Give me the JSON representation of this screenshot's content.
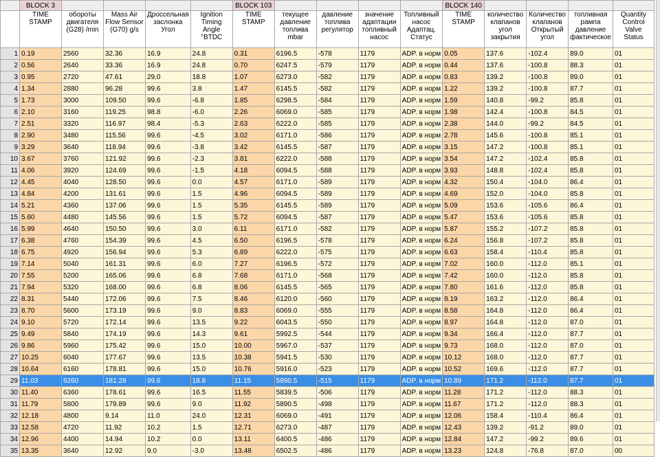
{
  "blocks": [
    {
      "label": "BLOCK 3",
      "after": 1,
      "span": 1
    },
    {
      "label": "BLOCK 103",
      "after": 5,
      "span": 1
    },
    {
      "label": "BLOCK 140",
      "after": 4,
      "span": 1
    }
  ],
  "columns": [
    {
      "label": "TIME STAMP",
      "ts": true
    },
    {
      "label": "обороты двигателя (G28) /min"
    },
    {
      "label": "Mass Air Flow Sensor (G70) g/s"
    },
    {
      "label": "Дроссельная заслонка Угол"
    },
    {
      "label": "Ignition Timing Angle °BTDC"
    },
    {
      "label": "TIME STAMP",
      "ts": true
    },
    {
      "label": "текущее давление топлива mbar"
    },
    {
      "label": "давление топлива регулятор"
    },
    {
      "label": "значение адаптации топливный насос"
    },
    {
      "label": "Топливный насос Адаптац. Статус"
    },
    {
      "label": "TIME STAMP",
      "ts": true
    },
    {
      "label": "количество клапанов угол закрытия"
    },
    {
      "label": "Количество клапанов Открытый угол"
    },
    {
      "label": "топливная рампа давление фактическое"
    },
    {
      "label": "Quantity Control Valve Status"
    }
  ],
  "selected_row": 29,
  "rows": [
    [
      "0.19",
      "2560",
      "32.36",
      "16.9",
      "24.8",
      "0.31",
      "6196.5",
      "-578",
      "1179",
      "ADP. в норм",
      "0.05",
      "137.6",
      "-102.4",
      "89.0",
      "01"
    ],
    [
      "0.56",
      "2640",
      "33.36",
      "16.9",
      "24.8",
      "0.70",
      "6247.5",
      "-579",
      "1179",
      "ADP. в норм",
      "0.44",
      "137.6",
      "-100.8",
      "88.3",
      "01"
    ],
    [
      "0.95",
      "2720",
      "47.61",
      "29.0",
      "18.8",
      "1.07",
      "6273.0",
      "-582",
      "1179",
      "ADP. в норм",
      "0.83",
      "139.2",
      "-100.8",
      "89.0",
      "01"
    ],
    [
      "1.34",
      "2880",
      "96.28",
      "99.6",
      "3.8",
      "1.47",
      "6145.5",
      "-582",
      "1179",
      "ADP. в норм",
      "1.22",
      "139.2",
      "-100.8",
      "87.7",
      "01"
    ],
    [
      "1.73",
      "3000",
      "109.50",
      "99.6",
      "-6.8",
      "1.85",
      "6298.5",
      "-584",
      "1179",
      "ADP. в норм",
      "1.59",
      "140.8",
      "-99.2",
      "85.8",
      "01"
    ],
    [
      "2.10",
      "3160",
      "119.25",
      "98.8",
      "-6.0",
      "2.26",
      "6069.0",
      "-585",
      "1179",
      "ADP. в норм",
      "1.98",
      "142.4",
      "-100.8",
      "84.5",
      "01"
    ],
    [
      "2.51",
      "3320",
      "116.97",
      "98.4",
      "-5.3",
      "2.63",
      "6222.0",
      "-585",
      "1179",
      "ADP. в норм",
      "2.38",
      "144.0",
      "-99.2",
      "84.5",
      "01"
    ],
    [
      "2.90",
      "3480",
      "115.56",
      "99.6",
      "-4.5",
      "3.02",
      "6171.0",
      "-586",
      "1179",
      "ADP. в норм",
      "2.78",
      "145.6",
      "-100.8",
      "85.1",
      "01"
    ],
    [
      "3.29",
      "3640",
      "118.94",
      "99.6",
      "-3.8",
      "3.42",
      "6145.5",
      "-587",
      "1179",
      "ADP. в норм",
      "3.15",
      "147.2",
      "-100.8",
      "85.1",
      "01"
    ],
    [
      "3.67",
      "3760",
      "121.92",
      "99.6",
      "-2.3",
      "3.81",
      "6222.0",
      "-588",
      "1179",
      "ADP. в норм",
      "3.54",
      "147.2",
      "-102.4",
      "85.8",
      "01"
    ],
    [
      "4.06",
      "3920",
      "124.69",
      "99.6",
      "-1.5",
      "4.18",
      "6094.5",
      "-588",
      "1179",
      "ADP. в норм",
      "3.93",
      "148.8",
      "-102.4",
      "85.8",
      "01"
    ],
    [
      "4.45",
      "4040",
      "128.50",
      "99.6",
      "0.0",
      "4.57",
      "6171.0",
      "-589",
      "1179",
      "ADP. в норм",
      "4.32",
      "150.4",
      "-104.0",
      "86.4",
      "01"
    ],
    [
      "4.84",
      "4200",
      "131.61",
      "99.6",
      "1.5",
      "4.96",
      "6094.5",
      "-589",
      "1179",
      "ADP. в норм",
      "4.69",
      "152.0",
      "-104.0",
      "85.8",
      "01"
    ],
    [
      "5.21",
      "4360",
      "137.06",
      "99.6",
      "1.5",
      "5.35",
      "6145.5",
      "-589",
      "1179",
      "ADP. в норм",
      "5.09",
      "153.6",
      "-105.6",
      "86.4",
      "01"
    ],
    [
      "5.60",
      "4480",
      "145.56",
      "99.6",
      "1.5",
      "5.72",
      "6094.5",
      "-587",
      "1179",
      "ADP. в норм",
      "5.47",
      "153.6",
      "-105.6",
      "85.8",
      "01"
    ],
    [
      "5.99",
      "4640",
      "150.50",
      "99.6",
      "3.0",
      "6.11",
      "6171.0",
      "-582",
      "1179",
      "ADP. в норм",
      "5.87",
      "155.2",
      "-107.2",
      "85.8",
      "01"
    ],
    [
      "6.38",
      "4760",
      "154.39",
      "99.6",
      "4.5",
      "6.50",
      "6196.5",
      "-578",
      "1179",
      "ADP. в норм",
      "6.24",
      "156.8",
      "-107.2",
      "85.8",
      "01"
    ],
    [
      "6.75",
      "4920",
      "156.94",
      "99.6",
      "5.3",
      "6.89",
      "6222.0",
      "-575",
      "1179",
      "ADP. в норм",
      "6.63",
      "158.4",
      "-110.4",
      "85.8",
      "01"
    ],
    [
      "7.14",
      "5040",
      "161.31",
      "99.6",
      "6.0",
      "7.27",
      "6196.5",
      "-572",
      "1179",
      "ADP. в норм",
      "7.02",
      "160.0",
      "-112.0",
      "85.1",
      "01"
    ],
    [
      "7.55",
      "5200",
      "165.06",
      "99.6",
      "6.8",
      "7.68",
      "6171.0",
      "-568",
      "1179",
      "ADP. в норм",
      "7.42",
      "160.0",
      "-112.0",
      "85.8",
      "01"
    ],
    [
      "7.94",
      "5320",
      "168.00",
      "99.6",
      "6.8",
      "8.06",
      "6145.5",
      "-565",
      "1179",
      "ADP. в норм",
      "7.80",
      "161.6",
      "-112.0",
      "85.8",
      "01"
    ],
    [
      "8.31",
      "5440",
      "172.06",
      "99.6",
      "7.5",
      "8.46",
      "6120.0",
      "-560",
      "1179",
      "ADP. в норм",
      "8.19",
      "163.2",
      "-112.0",
      "86.4",
      "01"
    ],
    [
      "8.70",
      "5600",
      "173.19",
      "99.6",
      "9.0",
      "8.83",
      "6069.0",
      "-555",
      "1179",
      "ADP. в норм",
      "8.58",
      "164.8",
      "-112.0",
      "86.4",
      "01"
    ],
    [
      "9.10",
      "5720",
      "172.14",
      "99.6",
      "13.5",
      "9.22",
      "6043.5",
      "-550",
      "1179",
      "ADP. в норм",
      "8.97",
      "164.8",
      "-112.0",
      "87.0",
      "01"
    ],
    [
      "9.49",
      "5840",
      "174.19",
      "99.6",
      "14.3",
      "9.61",
      "5992.5",
      "-544",
      "1179",
      "ADP. в норм",
      "9.34",
      "166.4",
      "-112.0",
      "87.7",
      "01"
    ],
    [
      "9.86",
      "5960",
      "175.42",
      "99.6",
      "15.0",
      "10.00",
      "5967.0",
      "-537",
      "1179",
      "ADP. в норм",
      "9.73",
      "168.0",
      "-112.0",
      "87.0",
      "01"
    ],
    [
      "10.25",
      "6040",
      "177.67",
      "99.6",
      "13.5",
      "10.38",
      "5941.5",
      "-530",
      "1179",
      "ADP. в норм",
      "10.12",
      "168.0",
      "-112.0",
      "87.7",
      "01"
    ],
    [
      "10.64",
      "6160",
      "178.81",
      "99.6",
      "15.0",
      "10.76",
      "5916.0",
      "-523",
      "1179",
      "ADP. в норм",
      "10.52",
      "169.6",
      "-112.0",
      "87.7",
      "01"
    ],
    [
      "11.03",
      "6260",
      "181.28",
      "99.6",
      "18.8",
      "11.15",
      "5890.5",
      "-515",
      "1179",
      "ADP. в норм",
      "10.89",
      "171.2",
      "-112.0",
      "87.7",
      "01"
    ],
    [
      "11.40",
      "6360",
      "178.61",
      "99.6",
      "16.5",
      "11.55",
      "5839.5",
      "-506",
      "1179",
      "ADP. в норм",
      "11.28",
      "171.2",
      "-112.0",
      "88.3",
      "01"
    ],
    [
      "11.79",
      "5800",
      "179.89",
      "99.6",
      "9.0",
      "11.92",
      "5890.5",
      "-498",
      "1179",
      "ADP. в норм",
      "11.67",
      "171.2",
      "-112.0",
      "88.3",
      "01"
    ],
    [
      "12.18",
      "4800",
      "9.14",
      "11.0",
      "24.0",
      "12.31",
      "6069.0",
      "-491",
      "1179",
      "ADP. в норм",
      "12.06",
      "158.4",
      "-110.4",
      "86.4",
      "01"
    ],
    [
      "12.58",
      "4720",
      "11.92",
      "10.2",
      "1.5",
      "12.71",
      "6273.0",
      "-487",
      "1179",
      "ADP. в норм",
      "12.43",
      "139.2",
      "-91.2",
      "89.0",
      "01"
    ],
    [
      "12.96",
      "4400",
      "14.94",
      "10.2",
      "0.0",
      "13.11",
      "6400.5",
      "-486",
      "1179",
      "ADP. в норм",
      "12.84",
      "147.2",
      "-99.2",
      "89.6",
      "01"
    ],
    [
      "13.35",
      "3640",
      "12.92",
      "9.0",
      "-3.0",
      "13.48",
      "6502.5",
      "-486",
      "1179",
      "ADP. в норм",
      "13.23",
      "124.8",
      "-76.8",
      "87.0",
      "00"
    ]
  ]
}
